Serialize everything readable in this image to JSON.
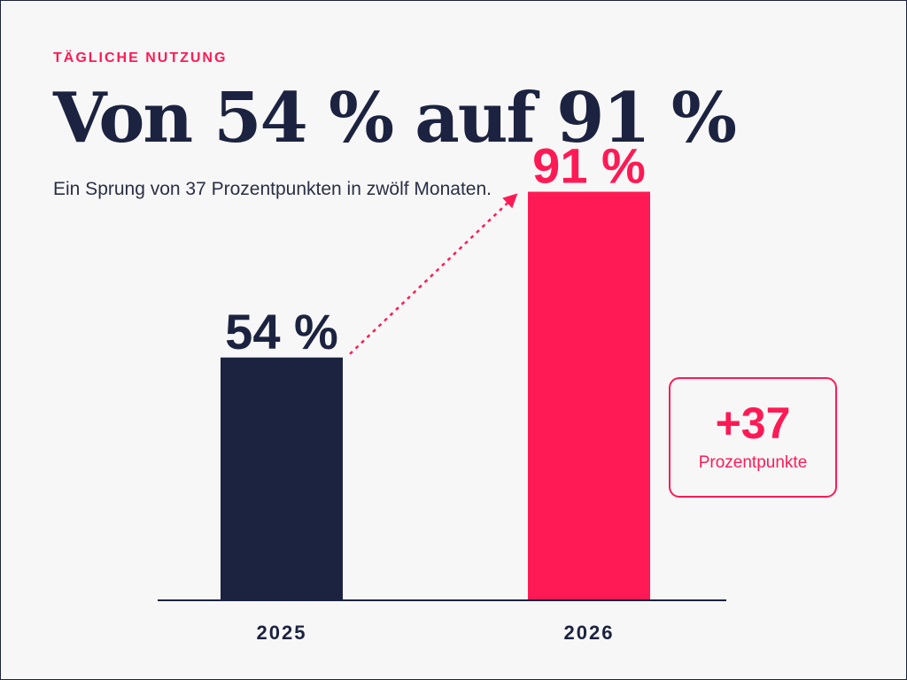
{
  "header": {
    "eyebrow": "TÄGLICHE NUTZUNG",
    "title": "Von 54 % auf 91 %",
    "subtitle": "Ein Sprung von 37 Prozentpunkten in zwölf Monaten."
  },
  "callout": {
    "value": "+37",
    "label": "Prozentpunkte"
  },
  "colors": {
    "navy": "#1c2340",
    "accent": "#ff1a55",
    "background": "#f7f7f7"
  },
  "chart_data": {
    "type": "bar",
    "categories": [
      "2025",
      "2026"
    ],
    "values": [
      54,
      91
    ],
    "value_labels": [
      "54 %",
      "91 %"
    ],
    "bar_colors": [
      "#1c2340",
      "#ff1a55"
    ],
    "ylim": [
      0,
      100
    ],
    "grid": false,
    "annotation": "dotted arrow from 2025 bar to 2026 bar"
  }
}
